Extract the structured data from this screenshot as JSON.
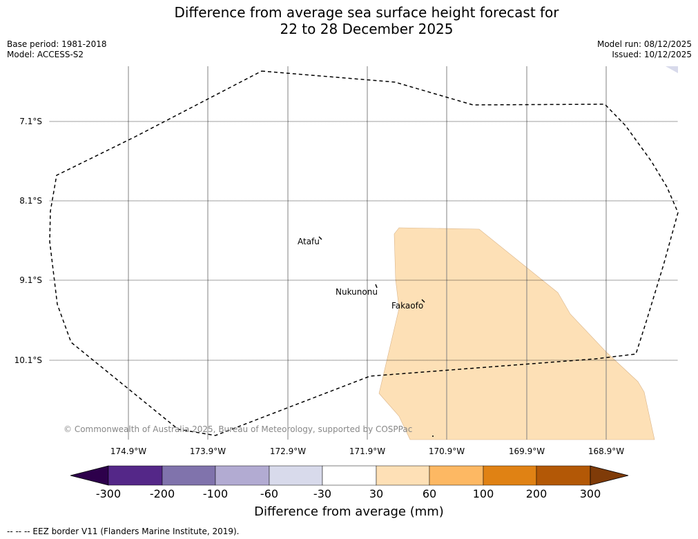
{
  "title": {
    "line1": "Difference from average sea surface height forecast for",
    "line2": "22 to 28 December 2025"
  },
  "meta_left": {
    "base_period": "Base period: 1981-2018",
    "model": "Model: ACCESS-S2"
  },
  "meta_right": {
    "model_run": "Model run: 08/12/2025",
    "issued": "Issued: 10/12/2025"
  },
  "map": {
    "lat_labels": [
      "7.1°S",
      "8.1°S",
      "9.1°S",
      "10.1°S"
    ],
    "lon_labels": [
      "174.9°W",
      "173.9°W",
      "172.9°W",
      "171.9°W",
      "170.9°W",
      "169.9°W",
      "168.9°W"
    ],
    "places": {
      "atafu": "Atafu",
      "nukunonu": "Nukunonu",
      "fakaofo": "Fakaofo"
    },
    "copyright": "© Commonwealth of Australia 2025, Bureau of Meteorology, supported by COSPPac",
    "anomaly_region_color": "#fde0b6",
    "anomaly_region_range_mm": "30 to 60"
  },
  "colorbar": {
    "ticks": [
      "-300",
      "-200",
      "-100",
      "-60",
      "-30",
      "30",
      "60",
      "100",
      "200",
      "300"
    ],
    "colors": [
      "#2d004b",
      "#542788",
      "#8073ac",
      "#b2abd2",
      "#d8daeb",
      "#ffffff",
      "#fee0b6",
      "#fdb863",
      "#e08214",
      "#b35806",
      "#7f3b08"
    ],
    "label": "Difference from average (mm)"
  },
  "footer": {
    "legend": "-- --  -- EEZ border V11 (Flanders Marine Institute, 2019)."
  }
}
